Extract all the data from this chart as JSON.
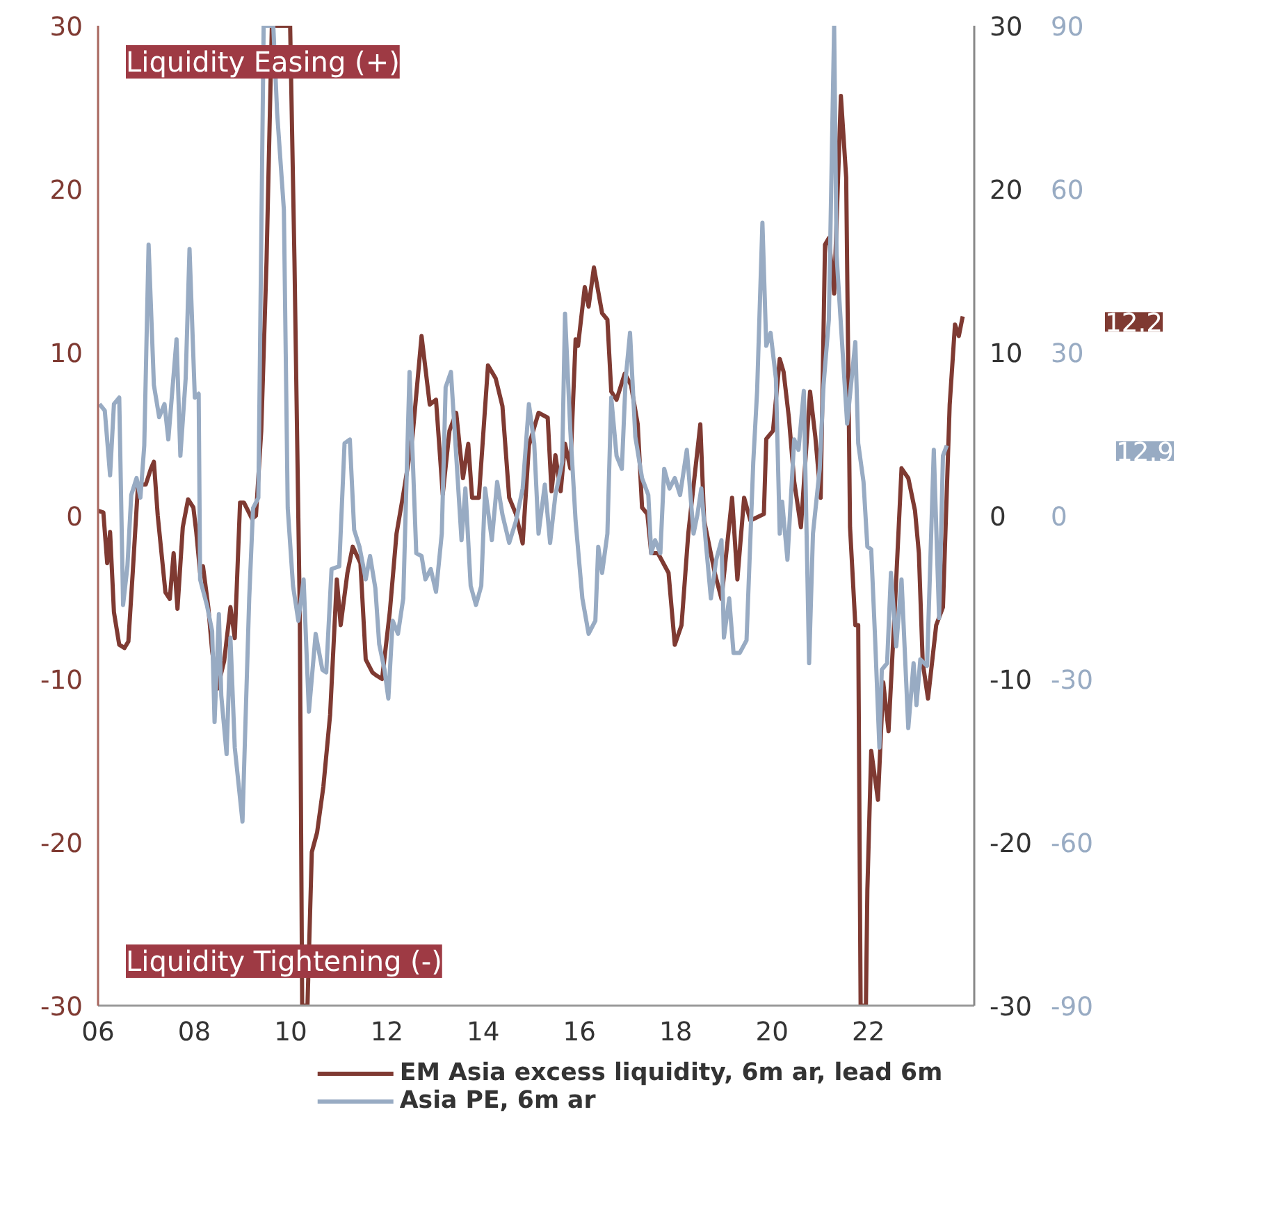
{
  "chart_data": {
    "type": "line",
    "xlim": [
      2006,
      2024.2
    ],
    "xticks": [
      {
        "value": 2006,
        "label": "06"
      },
      {
        "value": 2008,
        "label": "08"
      },
      {
        "value": 2010,
        "label": "10"
      },
      {
        "value": 2012,
        "label": "12"
      },
      {
        "value": 2014,
        "label": "14"
      },
      {
        "value": 2016,
        "label": "16"
      },
      {
        "value": 2018,
        "label": "18"
      },
      {
        "value": 2020,
        "label": "20"
      },
      {
        "value": 2022,
        "label": "22"
      }
    ],
    "ylim": [
      -30,
      30
    ],
    "yticks": [
      -30,
      -20,
      -10,
      0,
      10,
      20,
      30
    ],
    "y2lim": [
      -30,
      30
    ],
    "y2ticks": [
      -30,
      -20,
      -10,
      0,
      10,
      20,
      30
    ],
    "y3lim": [
      -90,
      90
    ],
    "y3ticks": [
      -90,
      -60,
      -30,
      0,
      30,
      60,
      90
    ],
    "grid": false,
    "legend": "bottom",
    "line_style": "solid",
    "marker": "none",
    "annotations": [
      "Liquidity Easing (+)",
      "Liquidity Tightening (-)",
      "12.2",
      "12.9"
    ],
    "series": [
      {
        "name": "EM Asia excess liquidity, 6m ar, lead 6m",
        "color": "#7f3a32",
        "x": [
          2006.0,
          2006.11,
          2006.19,
          2006.25,
          2006.33,
          2006.44,
          2006.55,
          2006.63,
          2006.72,
          2006.83,
          2006.99,
          2007.1,
          2007.16,
          2007.24,
          2007.4,
          2007.49,
          2007.57,
          2007.65,
          2007.76,
          2007.87,
          2007.98,
          2008.04,
          2008.12,
          2008.18,
          2008.29,
          2008.37,
          2008.48,
          2008.62,
          2008.75,
          2008.84,
          2008.95,
          2009.03,
          2009.2,
          2009.28,
          2009.39,
          2009.5,
          2009.61,
          2009.99,
          2010.08,
          2010.19,
          2010.24,
          2010.35,
          2010.44,
          2010.55,
          2010.68,
          2010.82,
          2010.96,
          2011.04,
          2011.18,
          2011.29,
          2011.45,
          2011.56,
          2011.7,
          2011.79,
          2011.9,
          2012.06,
          2012.2,
          2012.34,
          2012.53,
          2012.72,
          2012.89,
          2013.02,
          2013.16,
          2013.3,
          2013.44,
          2013.58,
          2013.69,
          2013.77,
          2013.91,
          2014.1,
          2014.26,
          2014.4,
          2014.54,
          2014.68,
          2014.82,
          2014.95,
          2015.15,
          2015.34,
          2015.42,
          2015.5,
          2015.61,
          2015.7,
          2015.81,
          2015.92,
          2015.97,
          2016.11,
          2016.19,
          2016.3,
          2016.47,
          2016.58,
          2016.66,
          2016.77,
          2016.94,
          2017.07,
          2017.21,
          2017.3,
          2017.41,
          2017.49,
          2017.63,
          2017.85,
          2017.98,
          2018.12,
          2018.26,
          2018.51,
          2018.59,
          2018.81,
          2018.95,
          2019.17,
          2019.28,
          2019.42,
          2019.55,
          2019.83,
          2019.88,
          2020.02,
          2020.16,
          2020.24,
          2020.35,
          2020.46,
          2020.6,
          2020.79,
          2020.9,
          2021.01,
          2021.1,
          2021.18,
          2021.29,
          2021.43,
          2021.54,
          2021.62,
          2021.73,
          2021.79,
          2021.84,
          2021.95,
          2021.98,
          2022.06,
          2022.2,
          2022.31,
          2022.42,
          2022.56,
          2022.69,
          2022.83,
          2022.97,
          2023.05,
          2023.13,
          2023.24,
          2023.41,
          2023.55,
          2023.69,
          2023.8,
          2023.88,
          2023.96
        ],
        "values": [
          0.3,
          0.2,
          -2.9,
          -1.0,
          -5.9,
          -7.9,
          -8.1,
          -7.7,
          -3.5,
          1.9,
          1.9,
          2.9,
          3.3,
          0,
          -4.7,
          -5.1,
          -2.3,
          -5.7,
          -0.7,
          1.0,
          0.5,
          -1.0,
          -3.5,
          -3.1,
          -5.6,
          -8.3,
          -10.6,
          -8.9,
          -5.6,
          -7.5,
          0.8,
          0.8,
          -0.2,
          0,
          5.2,
          15.6,
          30,
          30,
          15.6,
          -5.9,
          -30,
          -30,
          -20.6,
          -19.4,
          -16.6,
          -12.2,
          -3.9,
          -6.7,
          -3.5,
          -1.9,
          -2.9,
          -8.8,
          -9.6,
          -9.8,
          -10.0,
          -5.9,
          -1.1,
          1.3,
          4.8,
          11.0,
          6.8,
          7.1,
          1.3,
          5.2,
          6.3,
          2.3,
          4.4,
          1.1,
          1.1,
          9.2,
          8.4,
          6.7,
          1.1,
          0.1,
          -1.7,
          4.3,
          6.3,
          6.0,
          1.5,
          3.7,
          1.5,
          4.4,
          2.9,
          10.8,
          10.4,
          14.0,
          12.8,
          15.2,
          12.4,
          12.0,
          7.6,
          7.1,
          8.7,
          8.0,
          5.6,
          0.5,
          0.1,
          -2.3,
          -2.3,
          -3.5,
          -7.9,
          -6.7,
          -1.1,
          5.6,
          -0.3,
          -3.5,
          -5.1,
          1.1,
          -3.9,
          1.1,
          -0.3,
          0.1,
          4.7,
          5.2,
          9.6,
          8.8,
          6.0,
          2.1,
          -0.7,
          7.6,
          4.8,
          1.1,
          16.6,
          17.0,
          13.6,
          25.7,
          20.7,
          -0.7,
          -6.7,
          -6.7,
          -30,
          -30,
          -22.9,
          -14.4,
          -17.4,
          -10.2,
          -13.2,
          -5.1,
          2.9,
          2.3,
          0.3,
          -2.3,
          -9.0,
          -11.2,
          -6.7,
          -5.6,
          6.8,
          11.7,
          11.0,
          12.2
        ]
      },
      {
        "name": "Asia PE, 6m ar",
        "color": "#98abc3",
        "axis": "y3",
        "x": [
          2006.03,
          2006.14,
          2006.25,
          2006.33,
          2006.44,
          2006.52,
          2006.61,
          2006.69,
          2006.8,
          2006.88,
          2006.96,
          2007.05,
          2007.16,
          2007.27,
          2007.38,
          2007.46,
          2007.63,
          2007.71,
          2007.82,
          2007.9,
          2008.01,
          2008.09,
          2008.12,
          2008.26,
          2008.37,
          2008.42,
          2008.51,
          2008.56,
          2008.67,
          2008.75,
          2008.84,
          2009.0,
          2009.14,
          2009.22,
          2009.33,
          2009.44,
          2009.64,
          2009.72,
          2009.86,
          2009.94,
          2010.05,
          2010.16,
          2010.27,
          2010.38,
          2010.52,
          2010.66,
          2010.74,
          2010.85,
          2011.01,
          2011.12,
          2011.23,
          2011.32,
          2011.43,
          2011.56,
          2011.65,
          2011.76,
          2011.84,
          2011.95,
          2012.03,
          2012.12,
          2012.23,
          2012.34,
          2012.47,
          2012.61,
          2012.72,
          2012.8,
          2012.91,
          2013.02,
          2013.14,
          2013.22,
          2013.33,
          2013.44,
          2013.55,
          2013.63,
          2013.74,
          2013.85,
          2013.96,
          2014.04,
          2014.18,
          2014.29,
          2014.4,
          2014.54,
          2014.68,
          2014.82,
          2014.95,
          2015.06,
          2015.15,
          2015.28,
          2015.39,
          2015.5,
          2015.64,
          2015.7,
          2015.81,
          2015.92,
          2016.06,
          2016.19,
          2016.33,
          2016.39,
          2016.47,
          2016.58,
          2016.66,
          2016.77,
          2016.88,
          2016.96,
          2017.05,
          2017.16,
          2017.3,
          2017.43,
          2017.49,
          2017.57,
          2017.68,
          2017.76,
          2017.87,
          2017.98,
          2018.09,
          2018.23,
          2018.37,
          2018.45,
          2018.53,
          2018.62,
          2018.73,
          2018.84,
          2018.95,
          2019.0,
          2019.11,
          2019.2,
          2019.33,
          2019.47,
          2019.61,
          2019.69,
          2019.8,
          2019.88,
          2019.97,
          2020.08,
          2020.16,
          2020.21,
          2020.32,
          2020.46,
          2020.55,
          2020.66,
          2020.77,
          2020.85,
          2020.99,
          2021.07,
          2021.18,
          2021.29,
          2021.34,
          2021.45,
          2021.56,
          2021.73,
          2021.79,
          2021.9,
          2021.98,
          2022.06,
          2022.14,
          2022.23,
          2022.28,
          2022.39,
          2022.47,
          2022.58,
          2022.69,
          2022.83,
          2022.94,
          2023.0,
          2023.08,
          2023.22,
          2023.36,
          2023.47,
          2023.55,
          2023.63
        ],
        "values": [
          20.5,
          19.3,
          7.4,
          20.5,
          21.7,
          -16.4,
          -9.3,
          3.8,
          6.9,
          3.3,
          12.9,
          49.8,
          24.0,
          18.1,
          20.5,
          14.0,
          32.4,
          11.0,
          25.2,
          49.0,
          21.7,
          22.4,
          -11.7,
          -16.4,
          -21.2,
          -37.9,
          -18.1,
          -33.1,
          -43.8,
          -22.4,
          -42.6,
          -56.2,
          -15.2,
          1.4,
          3.3,
          90,
          90,
          74.0,
          56.2,
          1.4,
          -12.9,
          -19.3,
          -11.7,
          -36.0,
          -21.7,
          -28.3,
          -28.8,
          -9.8,
          -9.3,
          13.3,
          14.0,
          -2.6,
          -5.7,
          -11.7,
          -7.4,
          -13.3,
          -23.6,
          -28.3,
          -33.6,
          -19.3,
          -21.7,
          -15.2,
          26.4,
          -6.9,
          -7.4,
          -11.7,
          -9.8,
          -14.0,
          -3.3,
          23.6,
          26.4,
          11.0,
          -4.5,
          5.0,
          -12.9,
          -16.4,
          -12.9,
          5.0,
          -4.5,
          6.2,
          0.2,
          -5.0,
          -1.0,
          5.0,
          20.5,
          13.3,
          -3.3,
          5.7,
          -5.0,
          3.8,
          9.8,
          37.1,
          15.7,
          -1.0,
          -15.2,
          -21.7,
          -19.3,
          -5.7,
          -10.5,
          -3.3,
          21.7,
          11.0,
          8.6,
          25.2,
          33.6,
          14.5,
          6.9,
          3.8,
          -6.9,
          -4.5,
          -6.9,
          8.6,
          5.0,
          6.9,
          3.8,
          12.1,
          -3.3,
          0.2,
          5.0,
          -4.5,
          -15.2,
          -8.1,
          -4.5,
          -22.4,
          -15.2,
          -25.2,
          -25.2,
          -22.9,
          9.8,
          22.9,
          53.8,
          31.2,
          33.6,
          25.2,
          -3.3,
          2.6,
          -8.1,
          14.0,
          12.1,
          22.9,
          -27.1,
          -3.3,
          8.6,
          24.0,
          36.0,
          90,
          47.9,
          32.4,
          16.9,
          31.9,
          13.3,
          6.2,
          -5.7,
          -6.2,
          -22.4,
          -42.6,
          -28.3,
          -27.1,
          -10.5,
          -24.0,
          -11.7,
          -39.0,
          -27.1,
          -34.8,
          -26.4,
          -27.6,
          12.1,
          -18.8,
          11.0,
          12.9
        ]
      }
    ]
  }
}
